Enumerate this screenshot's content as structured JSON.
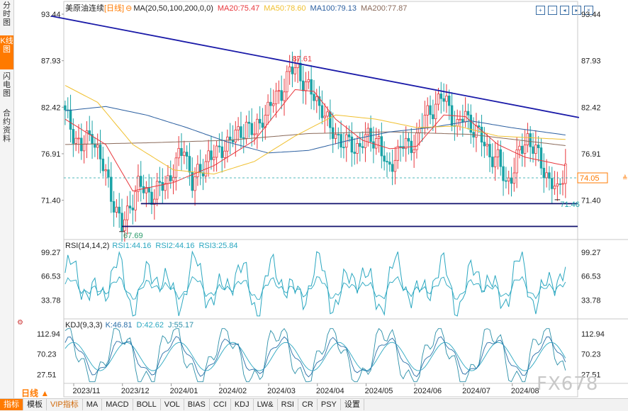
{
  "sidebar": {
    "tabs": [
      {
        "label": "分时图",
        "active": false
      },
      {
        "label": "K线图",
        "active": true
      },
      {
        "label": "闪电图",
        "active": false
      },
      {
        "label": "合约资料",
        "active": false
      }
    ]
  },
  "header": {
    "instrument": "美原油连续",
    "period_tag": "[日线]",
    "ma_params": "MA(20,50,100,200,0,0)",
    "ma20": "MA20:75.47",
    "ma50": "MA50:78.60",
    "ma100": "MA100:79.13",
    "ma200": "MA200:77.87",
    "toolbar_icons": [
      "zoom-in-icon",
      "zoom-out-icon",
      "move-left-icon",
      "move-right-icon",
      "reset-icon"
    ]
  },
  "colors": {
    "up": "#e8373c",
    "down": "#1aa3a6",
    "ma20": "#e8373c",
    "ma50": "#f0c030",
    "ma100": "#2b5fa0",
    "ma200": "#8a6a5a",
    "trend": "#1a1aa8",
    "support": "#10106e",
    "rsi1": "#2aa7c0",
    "rsi2": "#2aa7c0",
    "rsi3": "#2aa7c0",
    "kdj_k": "#2b6fa8",
    "kdj_d": "#2aa7c0",
    "kdj_j": "#2b8fa8"
  },
  "chart_data": [
    {
      "type": "candlestick",
      "panel": "price",
      "y_ticks": [
        "93.44",
        "87.93",
        "82.42",
        "76.91",
        "71.40"
      ],
      "ylim": [
        67.0,
        93.44
      ],
      "x_ticks": [
        "2023/11",
        "2023/12",
        "2024/01",
        "2024/02",
        "2024/03",
        "2024/04",
        "2024/05",
        "2024/06",
        "2024/07",
        "2024/08"
      ],
      "current_price": "74.05",
      "annotations": {
        "high": "87.61",
        "low": "67.69",
        "recent_low": "71.46"
      },
      "annotation_values": {
        "high": 87.61,
        "low": 67.69,
        "recent_low": 71.46
      },
      "current_value": 74.05,
      "anchors": [
        [
          0,
          81.5
        ],
        [
          6,
          77.5
        ],
        [
          10,
          79.5
        ],
        [
          13,
          76.0
        ],
        [
          16,
          73.5
        ],
        [
          19,
          70.0
        ],
        [
          21,
          68.0
        ],
        [
          24,
          71.0
        ],
        [
          27,
          73.0
        ],
        [
          30,
          72.5
        ],
        [
          33,
          72.0
        ],
        [
          37,
          73.5
        ],
        [
          41,
          75.5
        ],
        [
          44,
          77.8
        ],
        [
          47,
          73.5
        ],
        [
          50,
          74.5
        ],
        [
          53,
          77.0
        ],
        [
          56,
          76.5
        ],
        [
          60,
          78.5
        ],
        [
          64,
          79.0
        ],
        [
          67,
          80.5
        ],
        [
          70,
          79.0
        ],
        [
          73,
          81.5
        ],
        [
          76,
          82.5
        ],
        [
          80,
          84.5
        ],
        [
          83,
          86.5
        ],
        [
          86,
          87.0
        ],
        [
          89,
          85.0
        ],
        [
          92,
          83.5
        ],
        [
          95,
          82.5
        ],
        [
          98,
          79.5
        ],
        [
          101,
          79.0
        ],
        [
          104,
          78.0
        ],
        [
          107,
          77.5
        ],
        [
          110,
          78.5
        ],
        [
          113,
          78.5
        ],
        [
          116,
          78.8
        ],
        [
          119,
          74.5
        ],
        [
          121,
          76.0
        ],
        [
          124,
          78.0
        ],
        [
          127,
          77.5
        ],
        [
          130,
          79.0
        ],
        [
          133,
          81.0
        ],
        [
          136,
          82.5
        ],
        [
          139,
          83.5
        ],
        [
          142,
          82.5
        ],
        [
          145,
          80.0
        ],
        [
          148,
          81.5
        ],
        [
          151,
          80.0
        ],
        [
          154,
          78.5
        ],
        [
          157,
          77.0
        ],
        [
          160,
          76.0
        ],
        [
          163,
          73.5
        ],
        [
          166,
          75.0
        ],
        [
          168,
          77.0
        ],
        [
          171,
          79.0
        ],
        [
          174,
          77.0
        ],
        [
          177,
          75.0
        ],
        [
          180,
          73.5
        ],
        [
          182,
          71.9
        ],
        [
          185,
          76.0
        ]
      ],
      "trendline": {
        "from": [
          0,
          93.3
        ],
        "to": [
          190,
          81.2
        ]
      },
      "support_lines": [
        71.0,
        68.3
      ],
      "support_starts": [
        28,
        21
      ],
      "ma20": [
        [
          0,
          81.0
        ],
        [
          15,
          78.0
        ],
        [
          25,
          72.5
        ],
        [
          40,
          73.5
        ],
        [
          55,
          75.5
        ],
        [
          70,
          78.5
        ],
        [
          85,
          84.5
        ],
        [
          92,
          84.3
        ],
        [
          100,
          81.0
        ],
        [
          110,
          78.5
        ],
        [
          120,
          77.5
        ],
        [
          130,
          77.8
        ],
        [
          140,
          81.5
        ],
        [
          148,
          81.3
        ],
        [
          160,
          78.0
        ],
        [
          170,
          76.5
        ],
        [
          185,
          75.5
        ]
      ],
      "ma50": [
        [
          0,
          85.0
        ],
        [
          12,
          83.0
        ],
        [
          25,
          78.0
        ],
        [
          40,
          75.0
        ],
        [
          55,
          74.5
        ],
        [
          70,
          76.0
        ],
        [
          85,
          79.0
        ],
        [
          100,
          81.5
        ],
        [
          115,
          81.0
        ],
        [
          130,
          80.0
        ],
        [
          145,
          80.2
        ],
        [
          160,
          79.0
        ],
        [
          185,
          78.6
        ]
      ],
      "ma100": [
        [
          0,
          82.0
        ],
        [
          15,
          82.5
        ],
        [
          30,
          81.5
        ],
        [
          45,
          80.0
        ],
        [
          60,
          78.3
        ],
        [
          75,
          77.0
        ],
        [
          90,
          77.3
        ],
        [
          105,
          78.5
        ],
        [
          120,
          79.5
        ],
        [
          135,
          80.0
        ],
        [
          150,
          80.8
        ],
        [
          165,
          80.0
        ],
        [
          185,
          79.13
        ]
      ],
      "ma200": [
        [
          0,
          78.0
        ],
        [
          30,
          78.2
        ],
        [
          60,
          78.5
        ],
        [
          90,
          79.3
        ],
        [
          120,
          79.5
        ],
        [
          150,
          79.2
        ],
        [
          185,
          77.87
        ]
      ]
    },
    {
      "type": "line",
      "panel": "rsi",
      "label": "RSI(14,14,2)",
      "series": [
        {
          "name": "RSI1:44.16"
        },
        {
          "name": "RSI2:44.16"
        },
        {
          "name": "RSI3:25.84"
        }
      ],
      "y_ticks": [
        "99.27",
        "66.53",
        "33.78"
      ],
      "ylim": [
        10,
        105
      ]
    },
    {
      "type": "line",
      "panel": "kdj",
      "label": "KDJ(9,3,3)",
      "series": [
        {
          "name": "K:46.81"
        },
        {
          "name": "D:42.62"
        },
        {
          "name": "J:55.17"
        }
      ],
      "y_ticks": [
        "112.94",
        "70.23",
        "27.51"
      ],
      "ylim": [
        10,
        125
      ]
    }
  ],
  "bottom": {
    "period_selector": "日线 ▲",
    "tabs": [
      {
        "label": "指标",
        "active": true
      },
      {
        "label": "模板",
        "active": false
      },
      {
        "label": "VIP指标",
        "active": false,
        "vip": true
      },
      {
        "label": "MA",
        "active": false
      },
      {
        "label": "MACD",
        "active": false
      },
      {
        "label": "BOLL",
        "active": false
      },
      {
        "label": "VOL",
        "active": false
      },
      {
        "label": "BIAS",
        "active": false
      },
      {
        "label": "CCI",
        "active": false
      },
      {
        "label": "KDJ",
        "active": false
      },
      {
        "label": "LW&",
        "active": false
      },
      {
        "label": "RSI",
        "active": false
      },
      {
        "label": "CR",
        "active": false
      },
      {
        "label": "PSY",
        "active": false
      },
      {
        "label": "设置",
        "active": false
      }
    ]
  },
  "watermark": "FX678"
}
